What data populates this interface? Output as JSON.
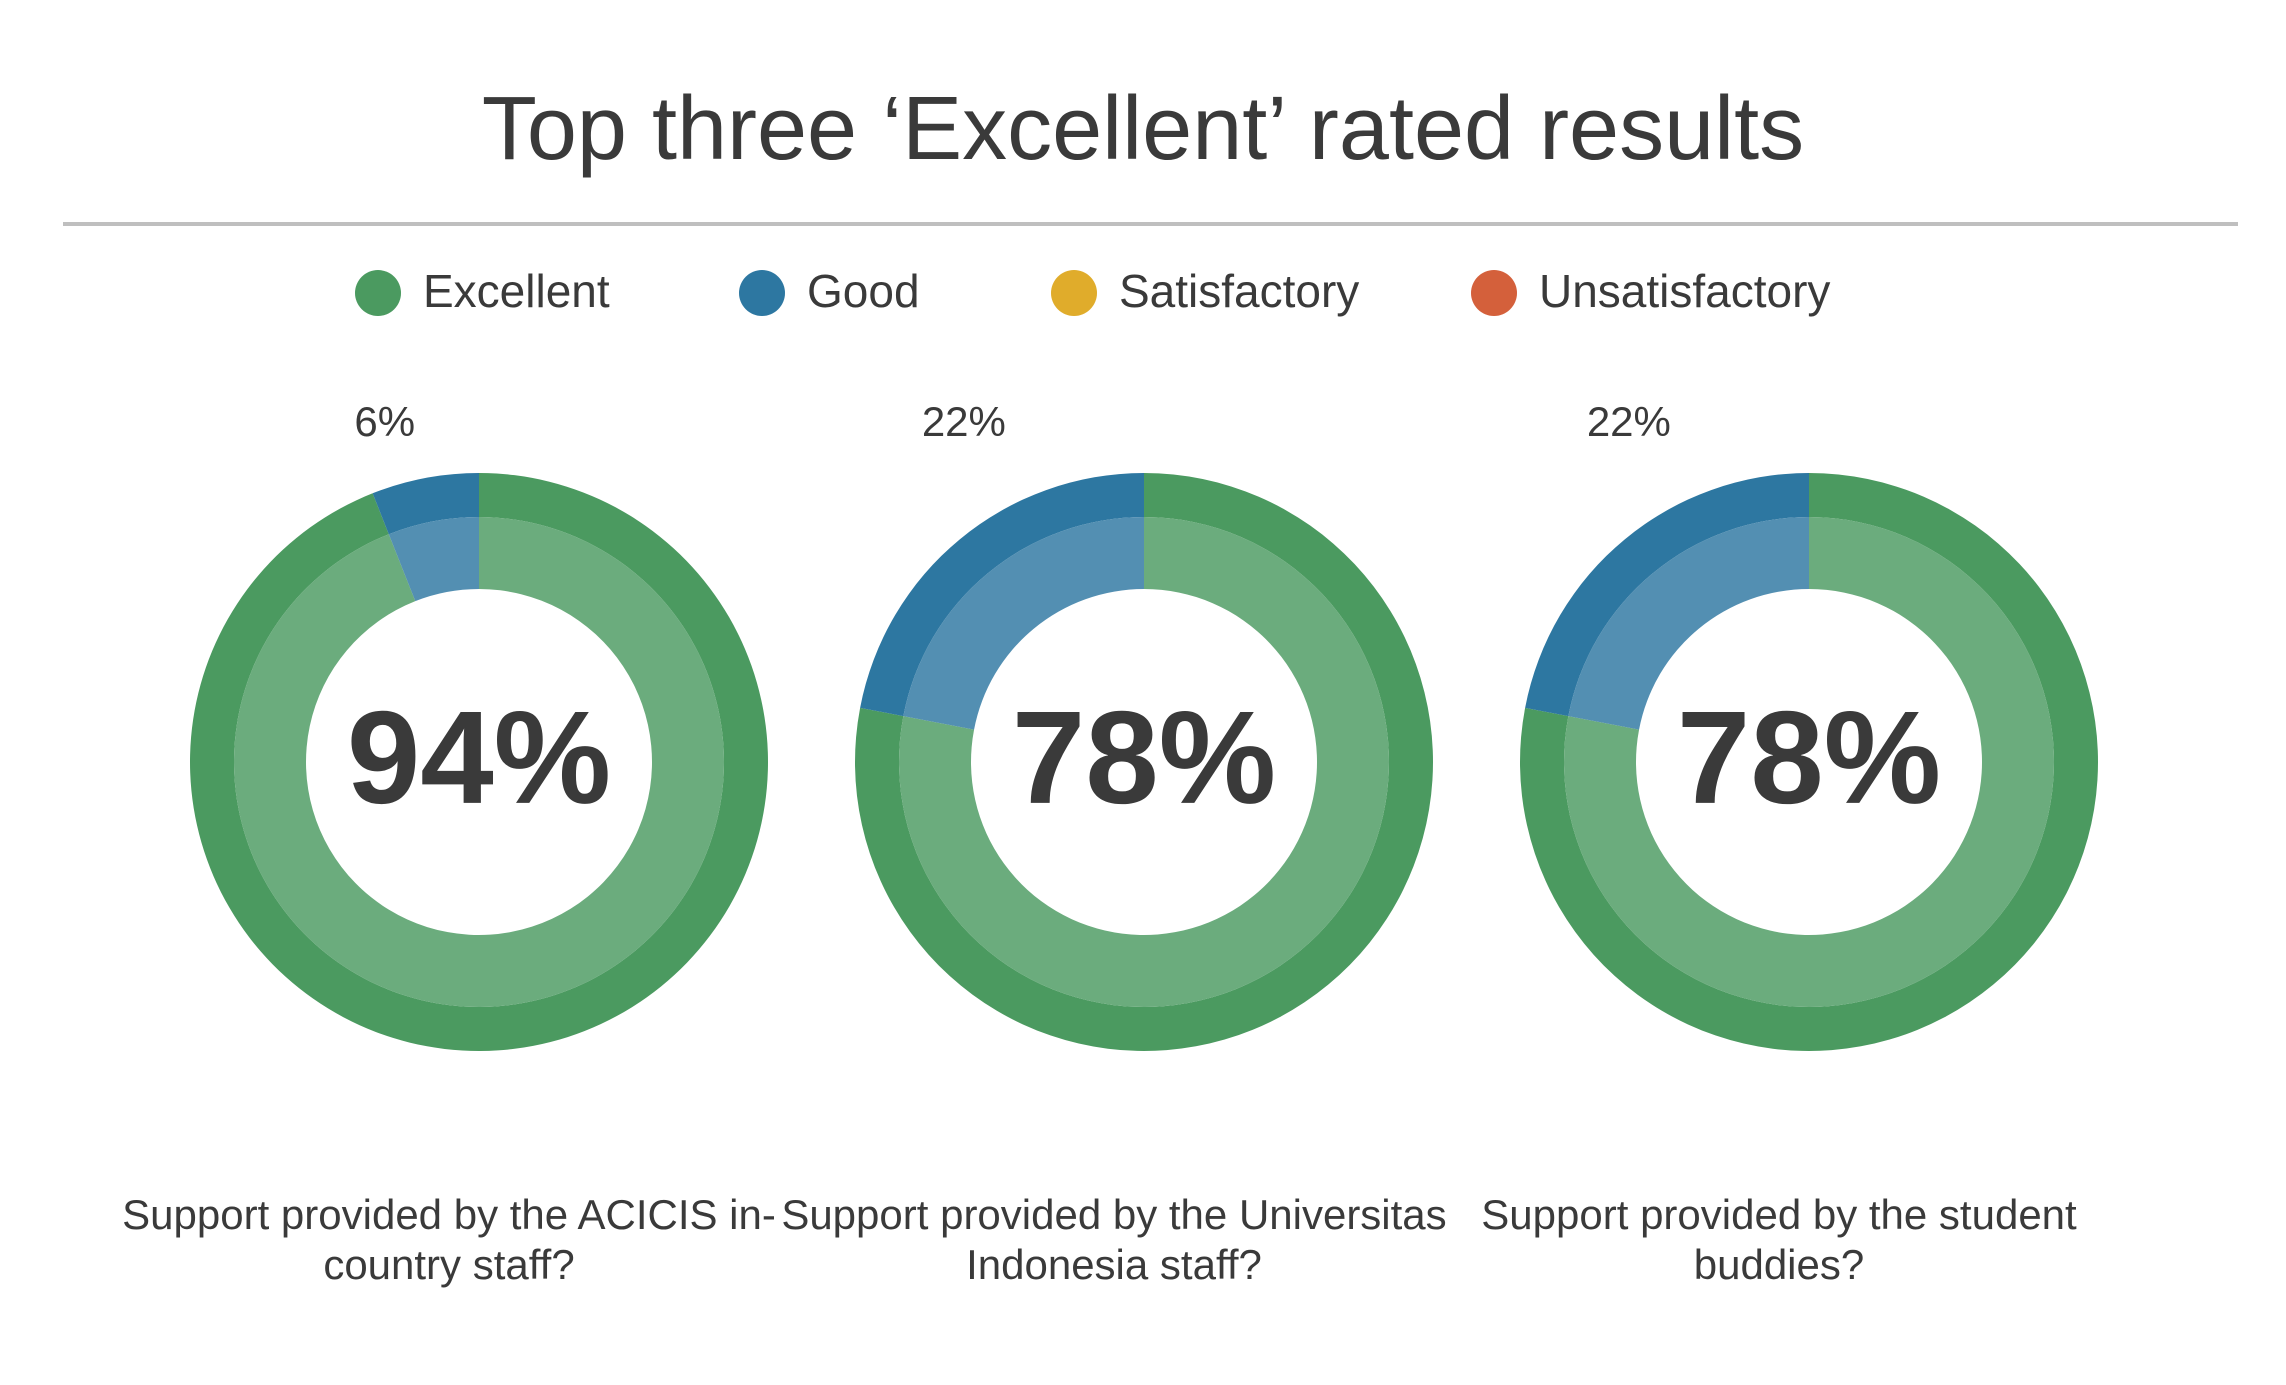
{
  "title": "Top three ‘Excellent’ rated results",
  "legend": {
    "labels": [
      "Excellent",
      "Good",
      "Satisfactory",
      "Unsatisfactory"
    ],
    "colors": [
      "#4b9a60",
      "#2d77a1",
      "#e0ac2b",
      "#d4603b"
    ]
  },
  "chart_data": [
    {
      "type": "pie",
      "title": "Support provided by the ACICIS in-country staff?",
      "values": [
        94,
        6
      ],
      "value_labels": [
        "94%",
        "6%"
      ]
    },
    {
      "type": "pie",
      "title": "Support provided by the Universitas Indonesia staff?",
      "values": [
        78,
        22
      ],
      "value_labels": [
        "78%",
        "22%"
      ]
    },
    {
      "type": "pie",
      "title": "Support provided by the student buddies?",
      "values": [
        78,
        22
      ],
      "value_labels": [
        "78%",
        "22%"
      ]
    }
  ]
}
